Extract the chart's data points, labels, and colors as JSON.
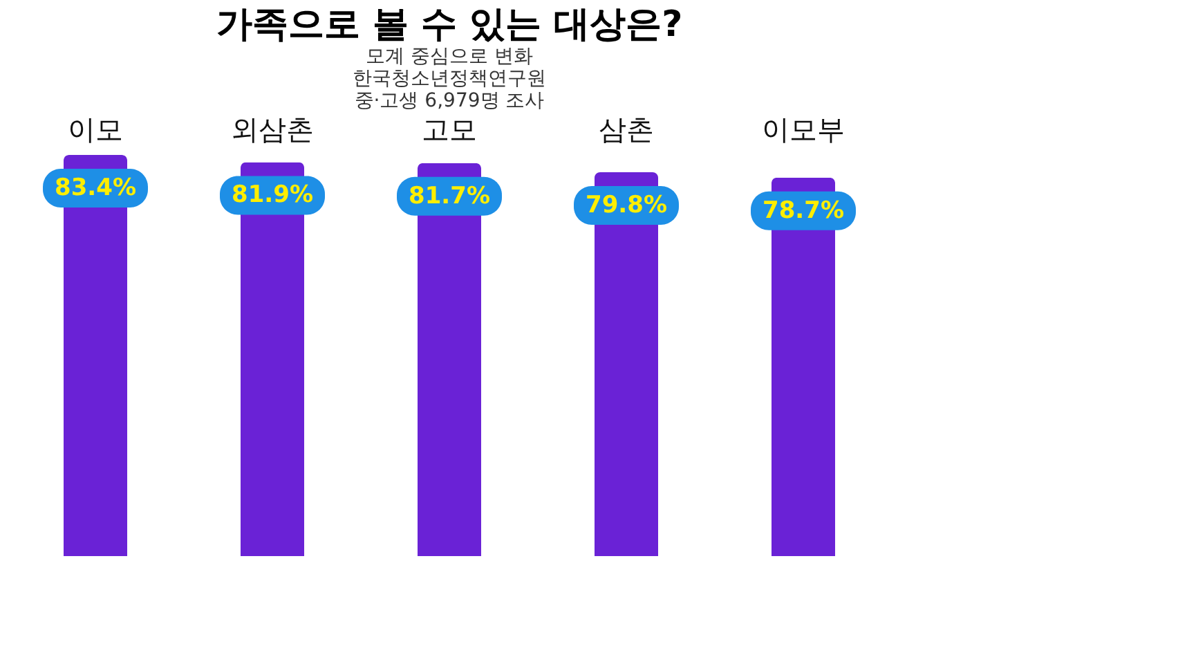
{
  "chart_data": {
    "type": "bar",
    "title": "가족으로 볼 수 있는 대상은?",
    "annotations": [
      "모계 중심으로 변화",
      "한국청소년정책연구원",
      "중·고생 6,979명 조사"
    ],
    "categories": [
      "이모",
      "외삼촌",
      "고모",
      "삼촌",
      "이모부"
    ],
    "values": [
      83.4,
      81.9,
      81.7,
      79.8,
      78.7
    ],
    "value_labels": [
      "83.4%",
      "81.9%",
      "81.7%",
      "79.8%",
      "78.7%"
    ],
    "color": "#6a22d6"
  }
}
